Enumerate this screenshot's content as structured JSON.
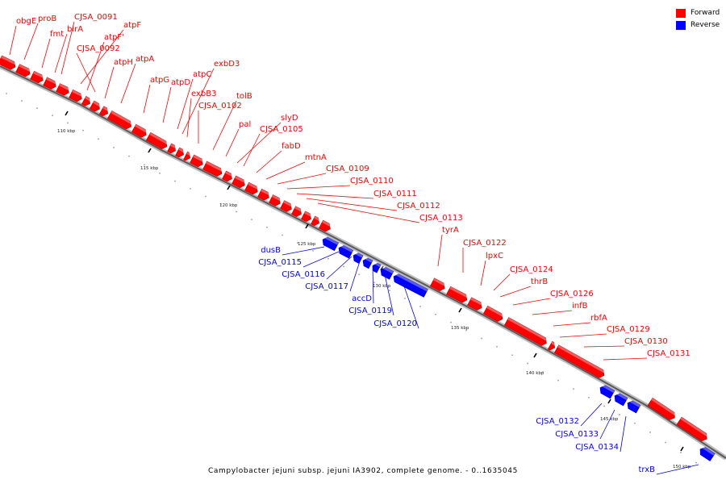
{
  "legend": {
    "forward_label": "Forward",
    "reverse_label": "Reverse",
    "forward_color": "#ff0000",
    "reverse_color": "#0000ff"
  },
  "caption": "Campylobacter jejuni subsp. jejuni IA3902, complete genome. - 0..1635045",
  "ticks": [
    "110 kbp",
    "115 kbp",
    "120 kbp",
    "125 kbp",
    "130 kbp",
    "135 kbp",
    "140 kbp",
    "145 kbp",
    "150 kbp"
  ],
  "forward_genes": [
    "obgE",
    "proB",
    "fmt",
    "CJSA_0091",
    "birA",
    "atpF",
    "atpF'",
    "CJSA_0092",
    "atpH",
    "atpA",
    "atpG",
    "atpD",
    "atpC",
    "exbD3",
    "exbB3",
    "CJSA_0102",
    "tolB",
    "pal",
    "slyD",
    "CJSA_0105",
    "fabD",
    "mtnA",
    "CJSA_0109",
    "CJSA_0110",
    "CJSA_0111",
    "CJSA_0112",
    "CJSA_0113",
    "tyrA",
    "CJSA_0122",
    "lpxC",
    "CJSA_0124",
    "thrB",
    "CJSA_0126",
    "infB",
    "rbfA",
    "CJSA_0129",
    "CJSA_0130",
    "CJSA_0131"
  ],
  "reverse_genes": [
    "dusB",
    "CJSA_0115",
    "CJSA_0116",
    "CJSA_0117",
    "accD",
    "CJSA_0119",
    "CJSA_0120",
    "CJSA_0132",
    "CJSA_0133",
    "CJSA_0134",
    "trxB"
  ]
}
